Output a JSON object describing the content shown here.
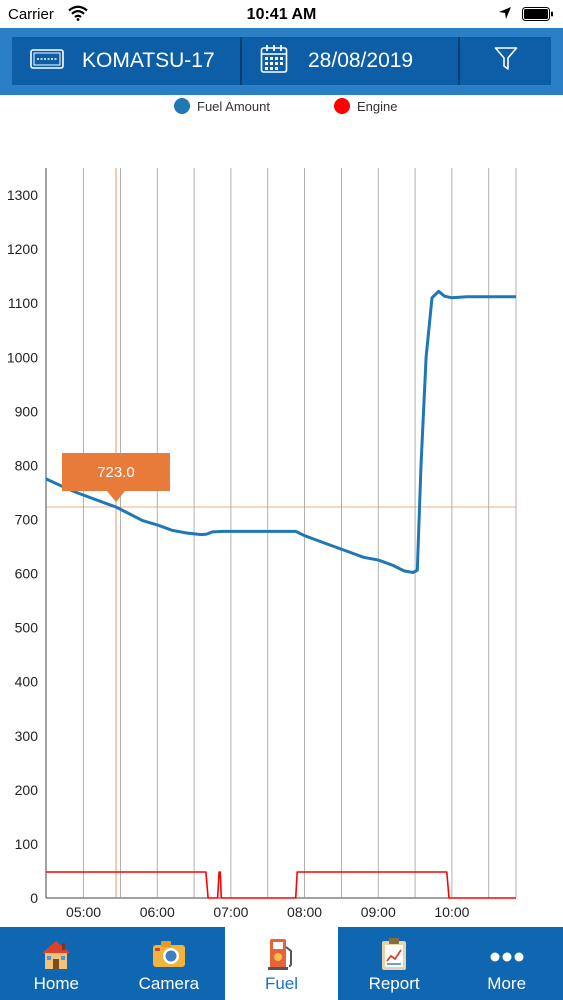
{
  "status_bar": {
    "carrier": "Carrier",
    "time": "10:41 AM"
  },
  "header": {
    "machine_name": "KOMATSU-17",
    "date": "28/08/2019",
    "icons": [
      "machine-plate-icon",
      "calendar-icon",
      "filter-icon"
    ]
  },
  "legend": [
    {
      "label": "Fuel Amount",
      "color": "#1f77b4"
    },
    {
      "label": "Engine",
      "color": "#ff0000"
    }
  ],
  "chart_data": {
    "type": "line",
    "y_ticks": [
      0,
      100,
      200,
      300,
      400,
      500,
      600,
      700,
      800,
      900,
      1000,
      1100,
      1200,
      1300
    ],
    "x_ticks": [
      "05:00",
      "06:00",
      "07:00",
      "08:00",
      "09:00",
      "10:00"
    ],
    "ylim": [
      0,
      1350
    ],
    "xlim_hours": [
      4.49,
      10.87
    ],
    "grid": "vertical",
    "legend_position": "top-center",
    "series": [
      {
        "name": "Fuel Amount",
        "color": "#1f77b4",
        "x": [
          4.49,
          4.7,
          4.9,
          5.1,
          5.3,
          5.44,
          5.6,
          5.8,
          6.0,
          6.2,
          6.4,
          6.6,
          6.67,
          6.75,
          6.9,
          7.1,
          7.3,
          7.5,
          7.7,
          7.88,
          8.0,
          8.2,
          8.4,
          8.6,
          8.8,
          9.0,
          9.2,
          9.35,
          9.47,
          9.53,
          9.58,
          9.65,
          9.73,
          9.82,
          9.9,
          10.0,
          10.2,
          10.4,
          10.6,
          10.87
        ],
        "values": [
          775,
          762,
          750,
          740,
          730,
          723,
          712,
          698,
          690,
          680,
          675,
          672,
          673,
          677,
          678,
          678,
          678,
          678,
          678,
          678,
          670,
          660,
          650,
          640,
          630,
          625,
          615,
          605,
          602,
          606,
          800,
          1000,
          1110,
          1122,
          1113,
          1110,
          1112,
          1112,
          1112,
          1112
        ]
      },
      {
        "name": "Engine",
        "color": "#ff0000",
        "x": [
          4.49,
          6.66,
          6.69,
          6.82,
          6.84,
          6.855,
          6.87,
          6.89,
          7.88,
          7.9,
          9.93,
          9.96,
          10.87
        ],
        "values": [
          48,
          48,
          0,
          0,
          48,
          48,
          0,
          0,
          0,
          48,
          48,
          0,
          0
        ]
      }
    ],
    "crosshair": {
      "x": 5.44,
      "y": 723.0,
      "label": "723.0",
      "color": "#e87b3a"
    }
  },
  "tabs": [
    {
      "label": "Home",
      "icon": "house-icon",
      "active": false
    },
    {
      "label": "Camera",
      "icon": "camera-icon",
      "active": false
    },
    {
      "label": "Fuel",
      "icon": "fuel-pump-icon",
      "active": true
    },
    {
      "label": "Report",
      "icon": "report-clipboard-icon",
      "active": false
    },
    {
      "label": "More",
      "icon": "more-dots-icon",
      "active": false
    }
  ]
}
